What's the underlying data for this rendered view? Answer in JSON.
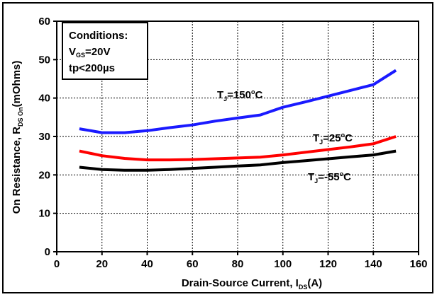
{
  "chart_data": {
    "type": "line",
    "xlabel": "Drain-Source Current, I",
    "xlabel_sub": "DS",
    "xlabel_unit": "(A)",
    "ylabel": "On Resistance, R",
    "ylabel_sub": "DS On",
    "ylabel_unit": "(mOhms)",
    "xlim": [
      0,
      160
    ],
    "ylim": [
      0,
      60
    ],
    "xticks": [
      0,
      20,
      40,
      60,
      80,
      100,
      120,
      140,
      160
    ],
    "yticks": [
      0,
      10,
      20,
      30,
      40,
      50,
      60
    ],
    "grid": true,
    "conditions": {
      "title": "Conditions:",
      "line1_main": "V",
      "line1_sub": "GS",
      "line1_rest": "=20V",
      "line2": "tp<200µs"
    },
    "series": [
      {
        "name": "T_J=150°C",
        "label_main": "T",
        "label_sub": "J",
        "label_eq": "=150",
        "label_sup": "o",
        "label_unit": "C",
        "color": "#1a1aff",
        "x": [
          10,
          20,
          30,
          40,
          50,
          60,
          70,
          80,
          90,
          100,
          110,
          120,
          130,
          140,
          150
        ],
        "y": [
          32,
          31,
          31,
          31.5,
          32.3,
          33,
          34,
          34.8,
          35.6,
          37.6,
          39,
          40.5,
          42,
          43.5,
          47.2
        ]
      },
      {
        "name": "T_J=25°C",
        "label_main": "T",
        "label_sub": "J",
        "label_eq": "=25",
        "label_sup": "o",
        "label_unit": "C",
        "color": "#ff0000",
        "x": [
          10,
          20,
          30,
          40,
          50,
          60,
          70,
          80,
          90,
          100,
          110,
          120,
          130,
          140,
          150
        ],
        "y": [
          26.2,
          25,
          24.3,
          23.9,
          23.9,
          24,
          24.2,
          24.4,
          24.6,
          25.2,
          25.9,
          26.6,
          27.3,
          28.1,
          30
        ]
      },
      {
        "name": "T_J=-55°C",
        "label_main": "T",
        "label_sub": "J",
        "label_eq": "=-55",
        "label_sup": "o",
        "label_unit": "C",
        "color": "#000000",
        "x": [
          10,
          20,
          30,
          40,
          50,
          60,
          70,
          80,
          90,
          100,
          110,
          120,
          130,
          140,
          150
        ],
        "y": [
          22,
          21.4,
          21.2,
          21.2,
          21.4,
          21.7,
          22,
          22.3,
          22.6,
          23.2,
          23.7,
          24.2,
          24.7,
          25.2,
          26.2
        ]
      }
    ]
  }
}
